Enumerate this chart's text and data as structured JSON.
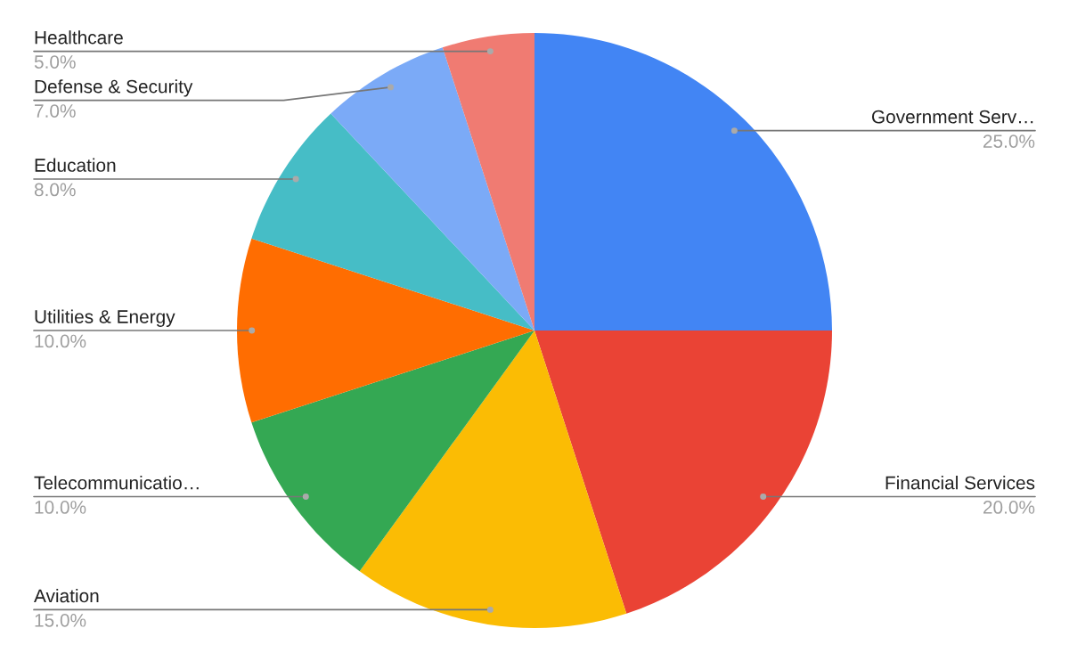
{
  "chart_data": {
    "type": "pie",
    "categories": [
      "Government Serv…",
      "Financial Services",
      "Aviation",
      "Telecommunicatio…",
      "Utilities & Energy",
      "Education",
      "Defense & Security",
      "Healthcare"
    ],
    "values": [
      25,
      20,
      15,
      10,
      10,
      8,
      7,
      5
    ],
    "colors": [
      "#4285f4",
      "#ea4335",
      "#fbbc04",
      "#34a853",
      "#ff6d01",
      "#46bdc6",
      "#7baaf7",
      "#f07b72"
    ],
    "value_labels": [
      "25.0%",
      "20.0%",
      "15.0%",
      "10.0%",
      "10.0%",
      "8.0%",
      "7.0%",
      "5.0%"
    ]
  }
}
